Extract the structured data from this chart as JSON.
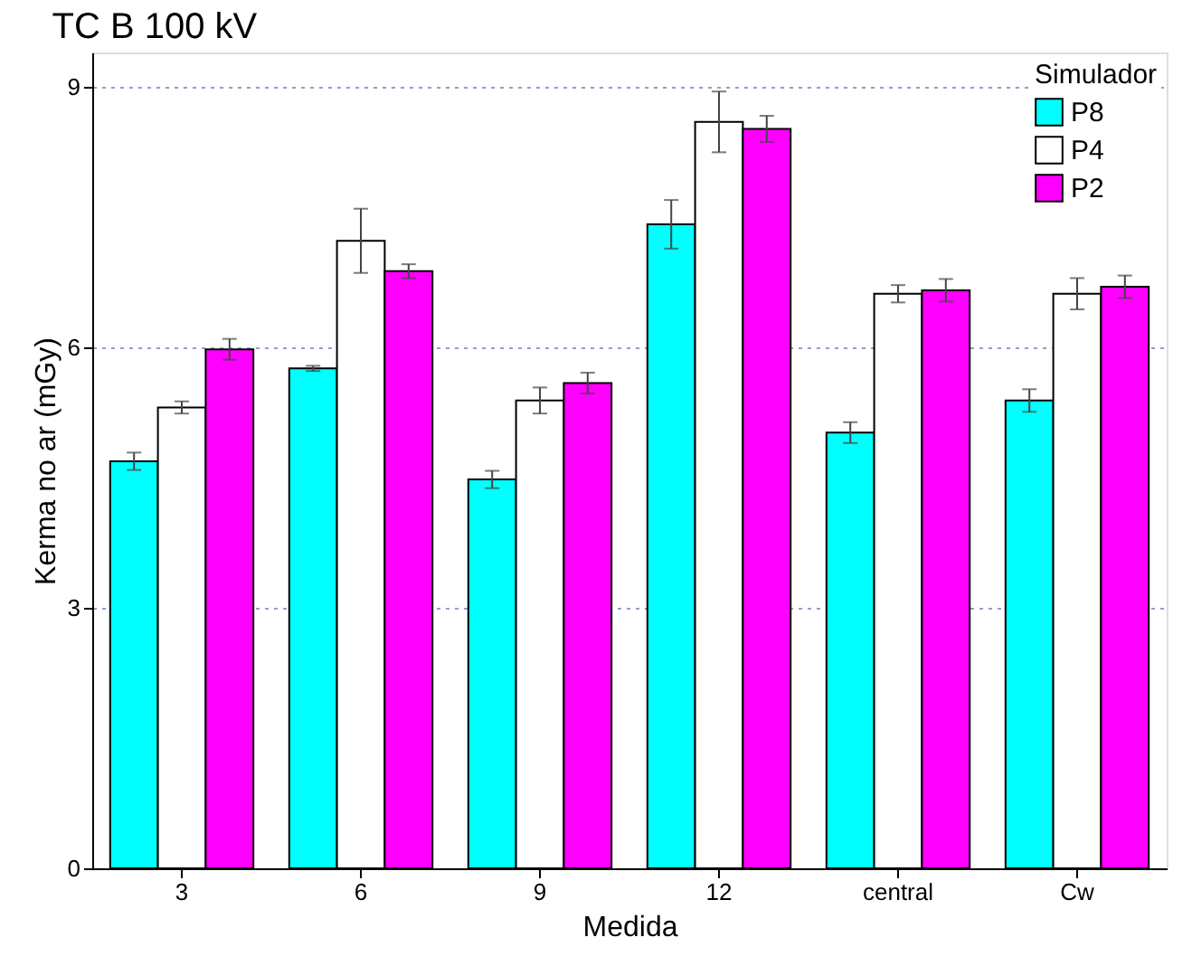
{
  "chart_data": {
    "type": "bar",
    "title": "TC B   100 kV",
    "xlabel": "Medida",
    "ylabel": "Kerma no ar (mGy)",
    "legend_title": "Simulador",
    "categories": [
      "3",
      "6",
      "9",
      "12",
      "central",
      "Cw"
    ],
    "series": [
      {
        "name": "P8",
        "color": "#00ffff",
        "values": [
          4.69,
          5.76,
          4.48,
          7.42,
          5.02,
          5.39
        ],
        "errors": [
          0.1,
          0.03,
          0.1,
          0.28,
          0.12,
          0.13
        ]
      },
      {
        "name": "P4",
        "color": "#ffffff",
        "values": [
          5.31,
          7.23,
          5.39,
          8.6,
          6.62,
          6.62
        ],
        "errors": [
          0.07,
          0.37,
          0.15,
          0.35,
          0.1,
          0.18
        ]
      },
      {
        "name": "P2",
        "color": "#ff00ff",
        "values": [
          5.98,
          6.88,
          5.59,
          8.52,
          6.66,
          6.7
        ],
        "errors": [
          0.12,
          0.08,
          0.12,
          0.15,
          0.13,
          0.13
        ]
      }
    ],
    "ylim": [
      0,
      9.4
    ],
    "yticks": [
      0,
      3,
      6,
      9
    ],
    "grid": "y",
    "legend": "top right"
  }
}
